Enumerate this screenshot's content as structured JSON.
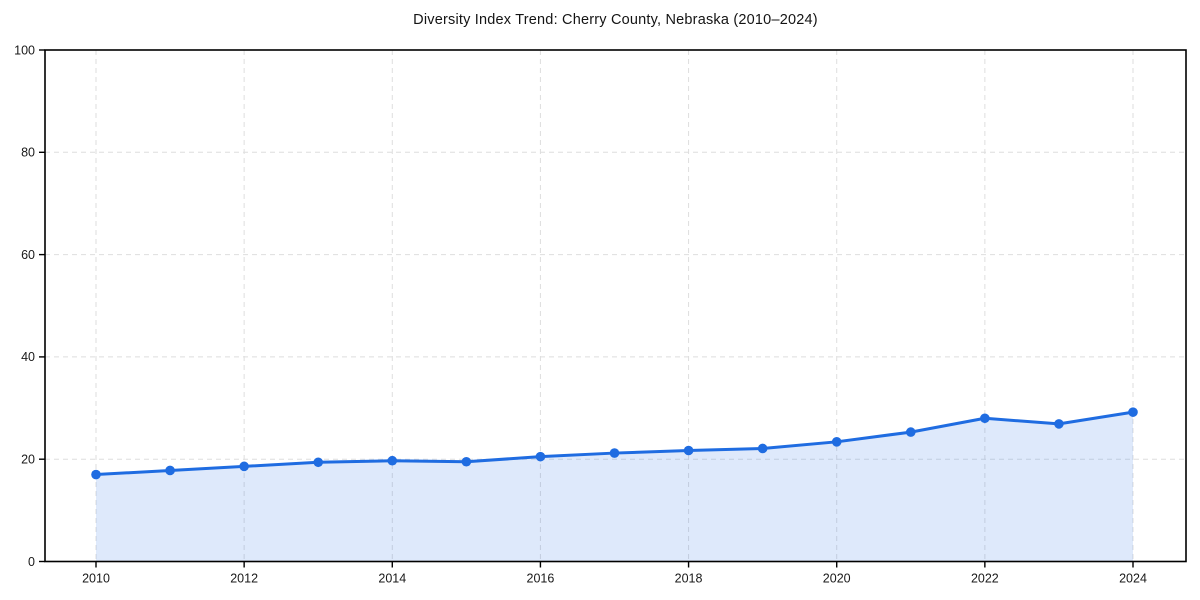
{
  "page": {
    "background": "#ffffff"
  },
  "chart_data": {
    "type": "line",
    "title": "Diversity Index Trend: Cherry County, Nebraska (2010–2024)",
    "series_name": "Diversity Index",
    "x": [
      2010,
      2011,
      2012,
      2013,
      2014,
      2015,
      2016,
      2017,
      2018,
      2019,
      2020,
      2021,
      2022,
      2023,
      2024
    ],
    "values": [
      17.0,
      17.8,
      18.6,
      19.4,
      19.7,
      19.5,
      20.5,
      21.2,
      21.7,
      22.1,
      23.4,
      25.3,
      28.0,
      26.9,
      29.2
    ],
    "xlabel": "",
    "ylabel": "",
    "ylim": [
      0,
      100
    ],
    "yticks": [
      0,
      20,
      40,
      60,
      80,
      100
    ],
    "ytick_labels": [
      "0",
      "20",
      "40",
      "60",
      "80",
      "100"
    ],
    "xticks": [
      2010,
      2012,
      2014,
      2016,
      2018,
      2020,
      2022,
      2024
    ],
    "xtick_labels": [
      "2010",
      "2012",
      "2014",
      "2016",
      "2018",
      "2020",
      "2022",
      "2024"
    ],
    "grid": true,
    "grid_style": "dashed",
    "legend": false,
    "area_fill": true,
    "marker": "circle",
    "style": {
      "line_color": "#1f6ce1",
      "marker_color": "#1f6ce1",
      "fill_color": "rgba(33,108,225,0.15)",
      "grid_color": "#dedede",
      "spine_color": "#000000",
      "text_color": "#191919",
      "background": "#ffffff"
    }
  }
}
